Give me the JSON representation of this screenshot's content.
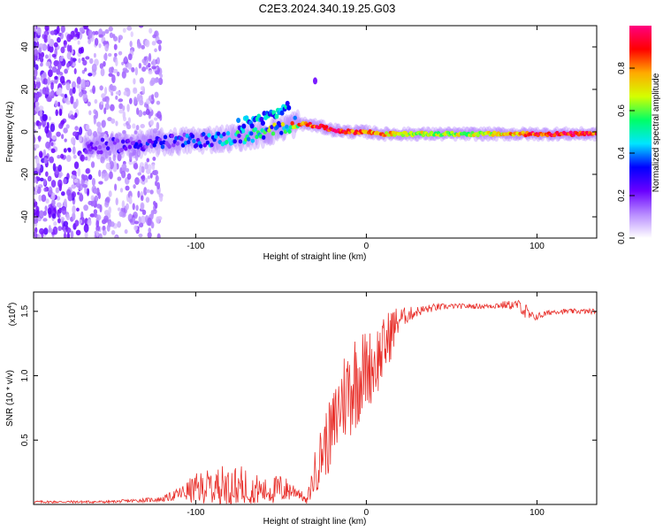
{
  "title": "C2E3.2024.340.19.25.G03",
  "chart_data": [
    {
      "type": "heatmap",
      "name": "spectrogram",
      "xlabel": "Height of straight line (km)",
      "ylabel": "Frequency (Hz)",
      "xlim": [
        -195,
        135
      ],
      "ylim": [
        -50,
        50
      ],
      "x_ticks": [
        -100,
        0,
        100
      ],
      "x_tick_labels": [
        "-100",
        "0",
        "100"
      ],
      "y_ticks": [
        -40,
        -20,
        0,
        20,
        40
      ],
      "y_tick_labels": [
        "-40",
        "-20",
        "0",
        "20",
        "40"
      ],
      "colorbar": {
        "label": "Normalized spectral amplitude",
        "range": [
          0,
          1
        ],
        "ticks": [
          0,
          0.2,
          0.4,
          0.6,
          0.8
        ],
        "tick_labels": [
          "0.0",
          "0.2",
          "0.4",
          "0.6",
          "0.8"
        ],
        "colors": [
          "#ffffff",
          "#b88cff",
          "#6a00ff",
          "#0000ff",
          "#00e5ff",
          "#00ff66",
          "#d4ff00",
          "#ffaa00",
          "#ff0000",
          "#ff0080"
        ]
      },
      "ridge": {
        "x": [
          -160,
          -140,
          -120,
          -100,
          -80,
          -60,
          -50,
          -40,
          -30,
          -20,
          -10,
          0,
          10,
          20,
          40,
          60,
          80,
          100,
          120,
          135
        ],
        "frequency_hz": [
          -7,
          -6,
          -5,
          -4,
          -3,
          -1,
          2,
          4,
          3,
          1,
          0,
          0,
          -1,
          -1,
          -1,
          -1,
          -1,
          -1,
          -1,
          -1
        ],
        "amplitude": [
          0.2,
          0.25,
          0.3,
          0.35,
          0.45,
          0.5,
          0.6,
          0.75,
          0.9,
          0.9,
          0.85,
          0.8,
          0.75,
          0.7,
          0.65,
          0.65,
          0.7,
          0.9,
          0.9,
          0.85
        ]
      },
      "side_branch": {
        "x": [
          -75,
          -55,
          -45
        ],
        "frequency_hz": [
          3,
          8,
          12
        ],
        "amplitude": 0.4
      },
      "blob": {
        "x": -30,
        "frequency_hz": 24,
        "amplitude": 0.2
      }
    },
    {
      "type": "line",
      "name": "snr",
      "xlabel": "Height of straight line (km)",
      "ylabel": "SNR (10 * v/v)",
      "y_multiplier_label": "(x10",
      "y_multiplier_exp": "4",
      "xlim": [
        -195,
        135
      ],
      "ylim": [
        0,
        1.65
      ],
      "x_ticks": [
        -100,
        0,
        100
      ],
      "x_tick_labels": [
        "-100",
        "0",
        "100"
      ],
      "y_ticks": [
        0.5,
        1.0,
        1.5
      ],
      "y_tick_labels": [
        "0.5",
        "1.0",
        "1.5"
      ],
      "line_color": "#e8302b",
      "envelope": {
        "x": [
          -195,
          -150,
          -120,
          -110,
          -100,
          -90,
          -80,
          -70,
          -60,
          -50,
          -40,
          -35,
          -30,
          -25,
          -20,
          -15,
          -10,
          -5,
          0,
          5,
          10,
          15,
          20,
          30,
          40,
          50,
          60,
          70,
          80,
          90,
          93,
          96,
          100,
          110,
          120,
          135
        ],
        "base": [
          0.02,
          0.02,
          0.04,
          0.08,
          0.12,
          0.14,
          0.14,
          0.14,
          0.1,
          0.12,
          0.1,
          0.02,
          0.25,
          0.45,
          0.55,
          0.8,
          0.9,
          1.0,
          1.05,
          1.1,
          1.2,
          1.35,
          1.45,
          1.5,
          1.53,
          1.54,
          1.54,
          1.54,
          1.55,
          1.55,
          1.5,
          1.46,
          1.46,
          1.5,
          1.5,
          1.5
        ],
        "amp": [
          0.01,
          0.01,
          0.02,
          0.05,
          0.12,
          0.15,
          0.18,
          0.15,
          0.1,
          0.12,
          0.05,
          0.02,
          0.18,
          0.25,
          0.3,
          0.35,
          0.4,
          0.4,
          0.3,
          0.3,
          0.25,
          0.2,
          0.08,
          0.04,
          0.03,
          0.02,
          0.02,
          0.02,
          0.03,
          0.04,
          0.08,
          0.04,
          0.03,
          0.02,
          0.02,
          0.02
        ]
      }
    }
  ]
}
